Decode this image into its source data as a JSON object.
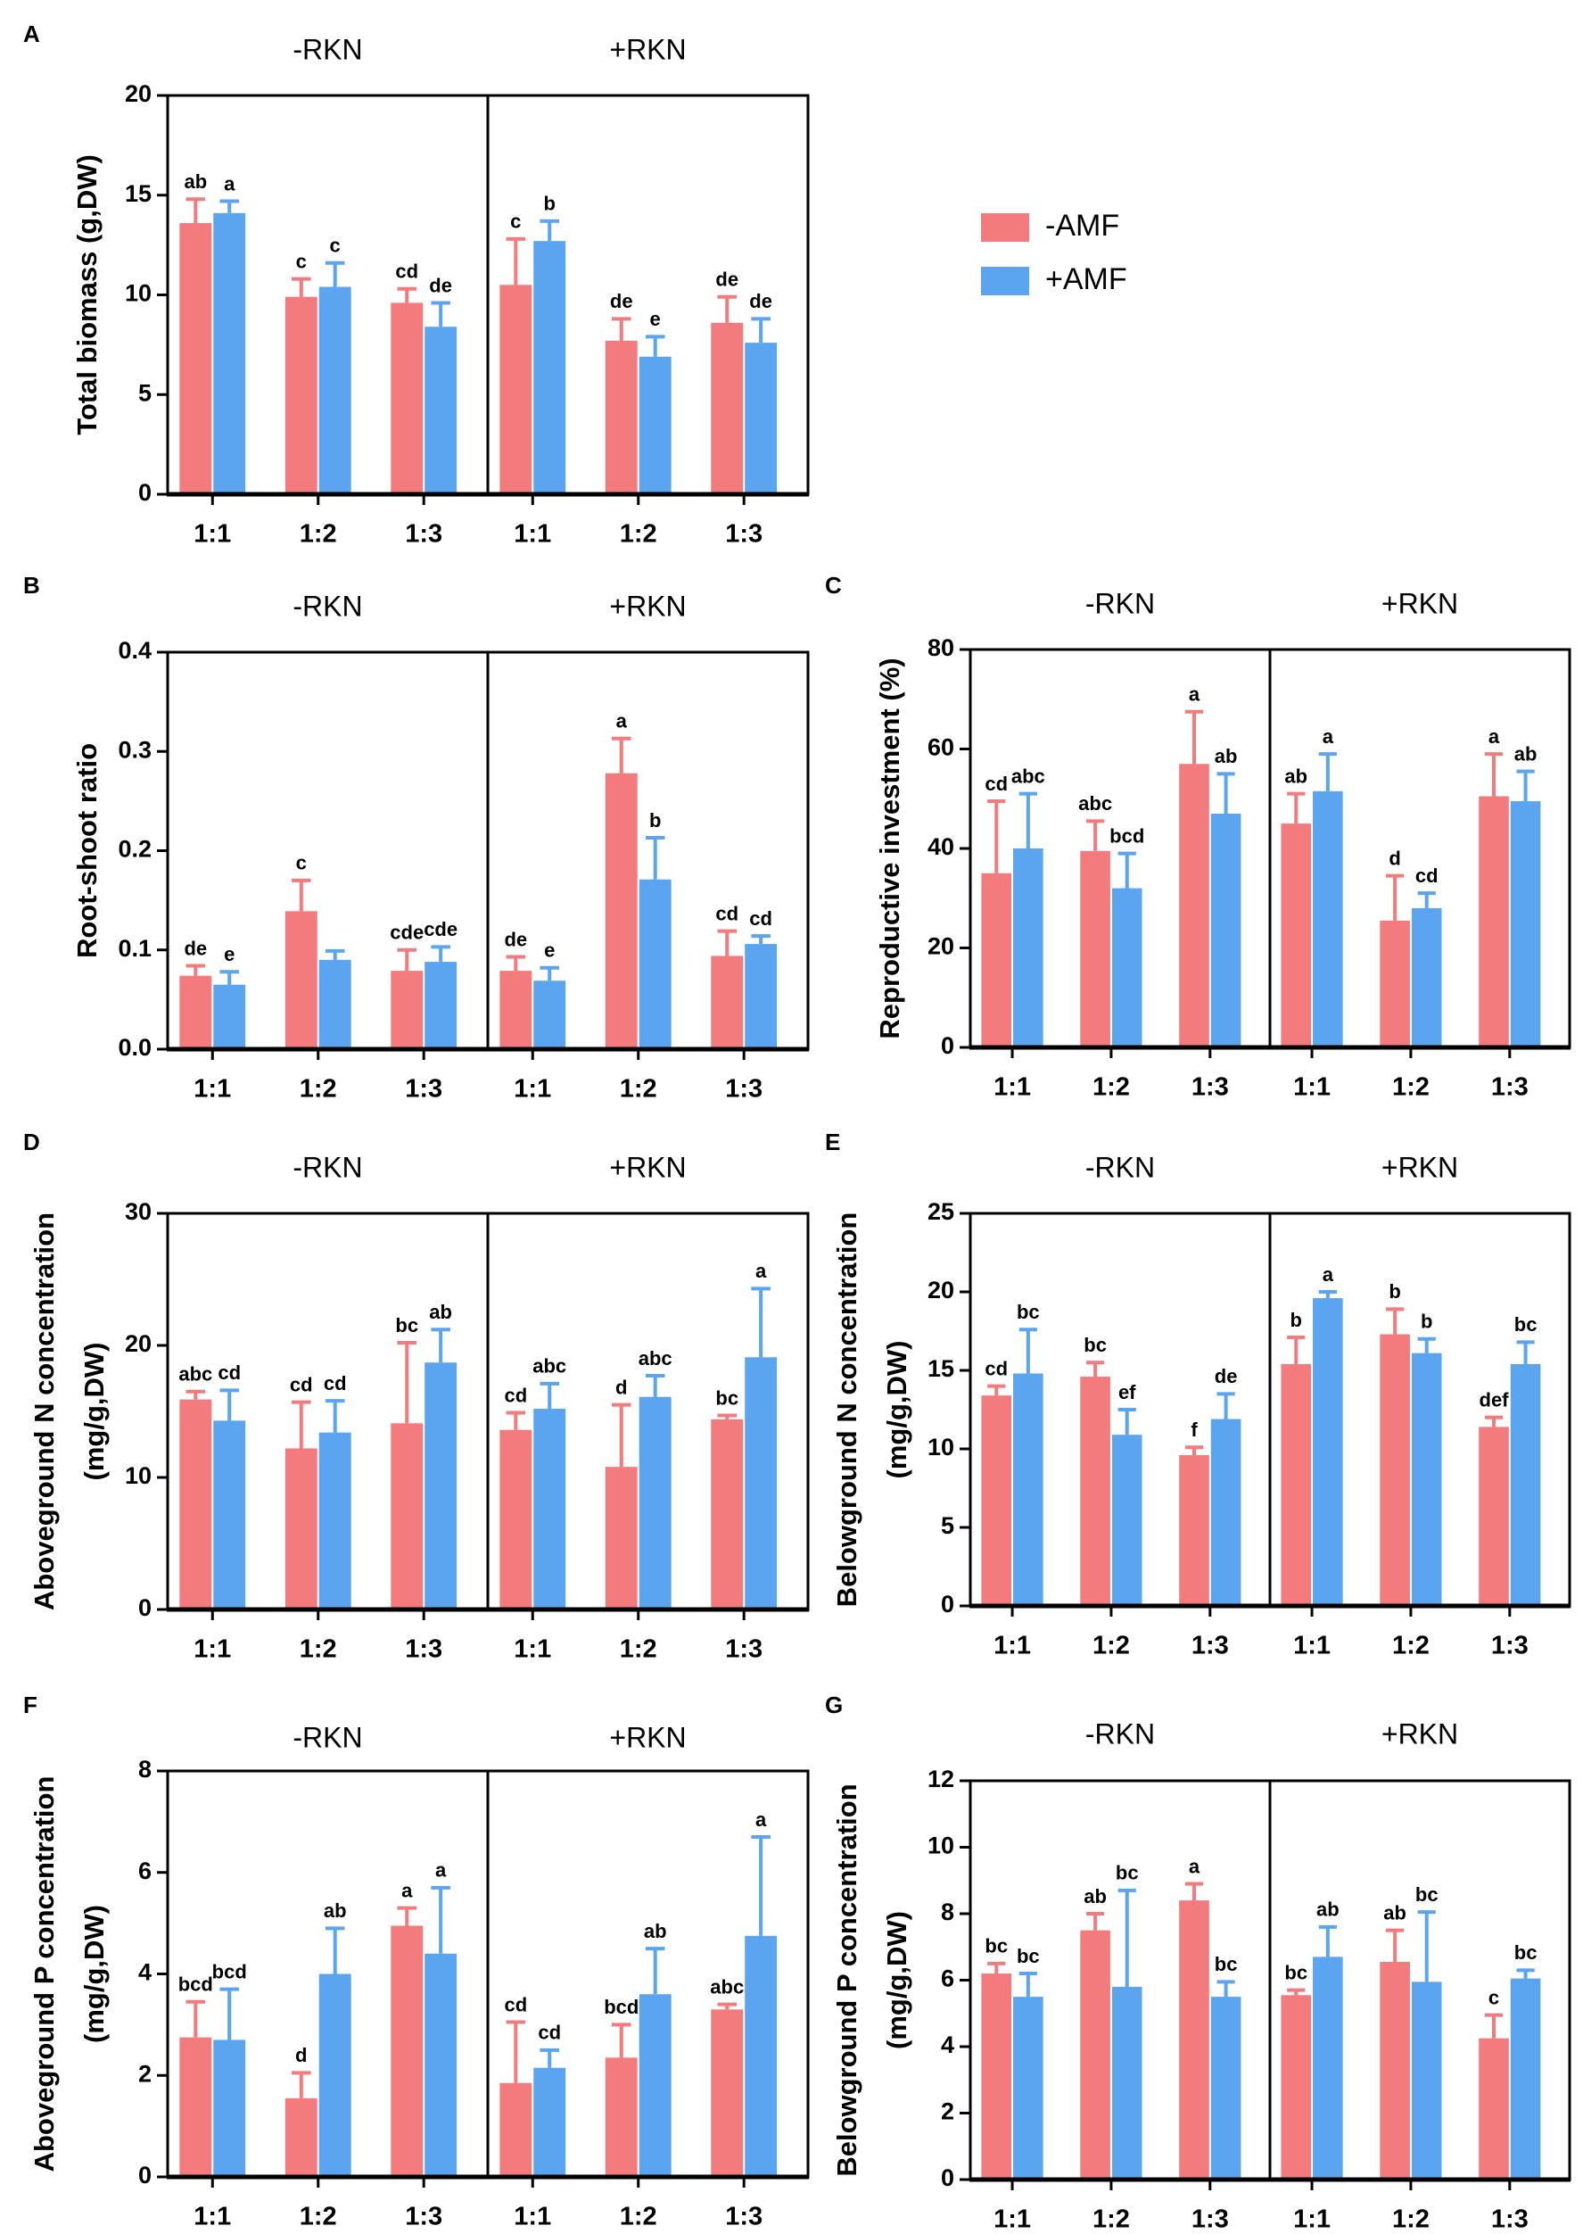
{
  "chart_data": [
    {
      "type": "bar",
      "panel": "A",
      "ylabel": [
        "Total biomass  (g,DW)"
      ],
      "ylim": [
        0,
        20
      ],
      "yticks": [
        0,
        5,
        10,
        15,
        20
      ],
      "colors": [
        "#f47b7d",
        "#5aa4f0"
      ],
      "legend": [
        {
          "name": "-AMF",
          "color": "#f47b7d"
        },
        {
          "name": "+AMF",
          "color": "#5aa4f0"
        }
      ],
      "groups": [
        {
          "title": "-RKN",
          "categories": [
            "1:1",
            "1:2",
            "1:3"
          ],
          "series": [
            {
              "values": [
                13.6,
                9.9,
                9.6
              ],
              "errors": [
                1.2,
                0.9,
                0.7
              ],
              "labels": [
                "ab",
                "c",
                "cd"
              ]
            },
            {
              "values": [
                14.1,
                10.4,
                8.4
              ],
              "errors": [
                0.6,
                1.2,
                1.2
              ],
              "labels": [
                "a",
                "c",
                "de"
              ]
            }
          ]
        },
        {
          "title": "+RKN",
          "categories": [
            "1:1",
            "1:2",
            "1:3"
          ],
          "series": [
            {
              "values": [
                10.5,
                7.7,
                8.6
              ],
              "errors": [
                2.3,
                1.1,
                1.3
              ],
              "labels": [
                "c",
                "de",
                "de"
              ]
            },
            {
              "values": [
                12.7,
                6.9,
                7.6
              ],
              "errors": [
                1.0,
                1.0,
                1.2
              ],
              "labels": [
                "b",
                "e",
                "de"
              ]
            }
          ]
        }
      ]
    },
    {
      "type": "bar",
      "panel": "B",
      "ylabel": [
        "Root-shoot ratio"
      ],
      "ylim": [
        0,
        0.4
      ],
      "yticks": [
        {
          "value": 0,
          "label": "0.0"
        },
        0.1,
        0.2,
        0.3,
        0.4
      ],
      "colors": [
        "#f47b7d",
        "#5aa4f0"
      ],
      "groups": [
        {
          "title": "-RKN",
          "categories": [
            "1:1",
            "1:2",
            "1:3"
          ],
          "series": [
            {
              "values": [
                0.074,
                0.139,
                0.079
              ],
              "errors": [
                0.01,
                0.031,
                0.021
              ],
              "labels": [
                "de",
                "c",
                "cde"
              ]
            },
            {
              "values": [
                0.065,
                0.09,
                0.088
              ],
              "errors": [
                0.013,
                0.009,
                0.015
              ],
              "labels": [
                "e",
                null,
                "cde"
              ]
            }
          ]
        },
        {
          "title": "+RKN",
          "categories": [
            "1:1",
            "1:2",
            "1:3"
          ],
          "series": [
            {
              "values": [
                0.079,
                0.278,
                0.094
              ],
              "errors": [
                0.014,
                0.035,
                0.025
              ],
              "labels": [
                "de",
                "a",
                "cd"
              ]
            },
            {
              "values": [
                0.069,
                0.171,
                0.106
              ],
              "errors": [
                0.013,
                0.042,
                0.008
              ],
              "labels": [
                "e",
                "b",
                "cd"
              ]
            }
          ]
        }
      ]
    },
    {
      "type": "bar",
      "panel": "C",
      "ylabel": [
        "Reproductive investment (%)"
      ],
      "ylim": [
        0,
        80
      ],
      "yticks": [
        0,
        20,
        40,
        60,
        80
      ],
      "colors": [
        "#f47b7d",
        "#5aa4f0"
      ],
      "groups": [
        {
          "title": "-RKN",
          "categories": [
            "1:1",
            "1:2",
            "1:3"
          ],
          "series": [
            {
              "values": [
                35,
                39.5,
                57
              ],
              "errors": [
                14.5,
                6,
                10.5
              ],
              "labels": [
                "cd",
                "abc",
                "a"
              ]
            },
            {
              "values": [
                40,
                32,
                47
              ],
              "errors": [
                11,
                7,
                8
              ],
              "labels": [
                "abc",
                "bcd",
                "ab"
              ]
            }
          ]
        },
        {
          "title": "+RKN",
          "categories": [
            "1:1",
            "1:2",
            "1:3"
          ],
          "series": [
            {
              "values": [
                45,
                25.5,
                50.5
              ],
              "errors": [
                6,
                9,
                8.5
              ],
              "labels": [
                "ab",
                "d",
                "a"
              ]
            },
            {
              "values": [
                51.5,
                28,
                49.5
              ],
              "errors": [
                7.5,
                3,
                6
              ],
              "labels": [
                "a",
                "cd",
                "ab"
              ]
            }
          ]
        }
      ]
    },
    {
      "type": "bar",
      "panel": "D",
      "ylabel": [
        "Aboveground N concentration",
        "(mg/g,DW)"
      ],
      "ylim": [
        0,
        30
      ],
      "yticks": [
        0,
        10,
        20,
        30
      ],
      "colors": [
        "#f47b7d",
        "#5aa4f0"
      ],
      "groups": [
        {
          "title": "-RKN",
          "categories": [
            "1:1",
            "1:2",
            "1:3"
          ],
          "series": [
            {
              "values": [
                15.9,
                12.2,
                14.1
              ],
              "errors": [
                0.6,
                3.5,
                6.1
              ],
              "labels": [
                "abc",
                "cd",
                "bc"
              ]
            },
            {
              "values": [
                14.3,
                13.4,
                18.7
              ],
              "errors": [
                2.3,
                2.4,
                2.5
              ],
              "labels": [
                "cd",
                "cd",
                "ab"
              ]
            }
          ]
        },
        {
          "title": "+RKN",
          "categories": [
            "1:1",
            "1:2",
            "1:3"
          ],
          "series": [
            {
              "values": [
                13.6,
                10.8,
                14.4
              ],
              "errors": [
                1.3,
                4.7,
                0.3
              ],
              "labels": [
                "cd",
                "d",
                "bc"
              ]
            },
            {
              "values": [
                15.2,
                16.1,
                19.1
              ],
              "errors": [
                1.9,
                1.6,
                5.2
              ],
              "labels": [
                "abc",
                "abc",
                "a"
              ]
            }
          ]
        }
      ]
    },
    {
      "type": "bar",
      "panel": "E",
      "ylabel": [
        "Belowground N  concentration",
        "(mg/g,DW)"
      ],
      "ylim": [
        0,
        25
      ],
      "yticks": [
        0,
        5,
        10,
        15,
        20,
        25
      ],
      "colors": [
        "#f47b7d",
        "#5aa4f0"
      ],
      "groups": [
        {
          "title": "-RKN",
          "categories": [
            "1:1",
            "1:2",
            "1:3"
          ],
          "series": [
            {
              "values": [
                13.4,
                14.6,
                9.6
              ],
              "errors": [
                0.6,
                0.9,
                0.5
              ],
              "labels": [
                "cd",
                "bc",
                "f"
              ]
            },
            {
              "values": [
                14.8,
                10.9,
                11.9
              ],
              "errors": [
                2.8,
                1.6,
                1.6
              ],
              "labels": [
                "bc",
                "ef",
                "de"
              ]
            }
          ]
        },
        {
          "title": "+RKN",
          "categories": [
            "1:1",
            "1:2",
            "1:3"
          ],
          "series": [
            {
              "values": [
                15.4,
                17.3,
                11.4
              ],
              "errors": [
                1.7,
                1.6,
                0.6
              ],
              "labels": [
                "b",
                "b",
                "def"
              ]
            },
            {
              "values": [
                19.6,
                16.1,
                15.4
              ],
              "errors": [
                0.4,
                0.9,
                1.4
              ],
              "labels": [
                "a",
                "b",
                "bc"
              ]
            }
          ]
        }
      ]
    },
    {
      "type": "bar",
      "panel": "F",
      "ylabel": [
        "Aboveground P concentration",
        "(mg/g,DW)"
      ],
      "ylim": [
        0,
        8
      ],
      "yticks": [
        0,
        2,
        4,
        6,
        8
      ],
      "colors": [
        "#f47b7d",
        "#5aa4f0"
      ],
      "groups": [
        {
          "title": "-RKN",
          "categories": [
            "1:1",
            "1:2",
            "1:3"
          ],
          "series": [
            {
              "values": [
                2.75,
                1.55,
                4.95
              ],
              "errors": [
                0.7,
                0.5,
                0.35
              ],
              "labels": [
                "bcd",
                "d",
                "a"
              ]
            },
            {
              "values": [
                2.7,
                4.0,
                4.4
              ],
              "errors": [
                1.0,
                0.9,
                1.3
              ],
              "labels": [
                "bcd",
                "ab",
                "a"
              ]
            }
          ]
        },
        {
          "title": "+RKN",
          "categories": [
            "1:1",
            "1:2",
            "1:3"
          ],
          "series": [
            {
              "values": [
                1.85,
                2.35,
                3.3
              ],
              "errors": [
                1.2,
                0.65,
                0.1
              ],
              "labels": [
                "cd",
                "bcd",
                "abc"
              ]
            },
            {
              "values": [
                2.15,
                3.6,
                4.75
              ],
              "errors": [
                0.35,
                0.9,
                1.95
              ],
              "labels": [
                "cd",
                "ab",
                "a"
              ]
            }
          ]
        }
      ]
    },
    {
      "type": "bar",
      "panel": "G",
      "ylabel": [
        "Belowground P concentration",
        "(mg/g,DW)"
      ],
      "ylim": [
        0,
        12
      ],
      "yticks": [
        0,
        2,
        4,
        6,
        8,
        10,
        12
      ],
      "colors": [
        "#f47b7d",
        "#5aa4f0"
      ],
      "groups": [
        {
          "title": "-RKN",
          "categories": [
            "1:1",
            "1:2",
            "1:3"
          ],
          "series": [
            {
              "values": [
                6.2,
                7.5,
                8.4
              ],
              "errors": [
                0.3,
                0.5,
                0.5
              ],
              "labels": [
                "bc",
                "ab",
                "a"
              ]
            },
            {
              "values": [
                5.5,
                5.8,
                5.5
              ],
              "errors": [
                0.7,
                2.9,
                0.45
              ],
              "labels": [
                "bc",
                "bc",
                "bc"
              ]
            }
          ]
        },
        {
          "title": "+RKN",
          "categories": [
            "1:1",
            "1:2",
            "1:3"
          ],
          "series": [
            {
              "values": [
                5.55,
                6.55,
                4.25
              ],
              "errors": [
                0.15,
                0.95,
                0.7
              ],
              "labels": [
                "bc",
                "ab",
                "c"
              ]
            },
            {
              "values": [
                6.7,
                5.95,
                6.05
              ],
              "errors": [
                0.9,
                2.1,
                0.25
              ],
              "labels": [
                "ab",
                "bc",
                "bc"
              ]
            }
          ]
        }
      ]
    }
  ]
}
